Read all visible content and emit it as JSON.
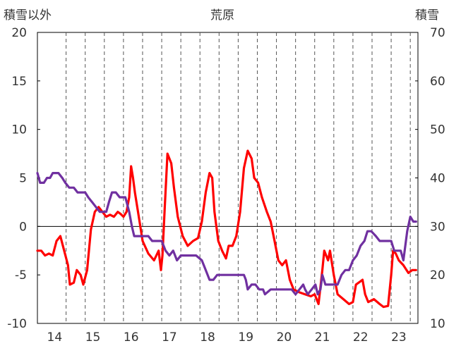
{
  "chart_data": {
    "type": "line",
    "title": "荒原",
    "left_axis_label": "積雪以外",
    "right_axis_label": "積雪",
    "left_ylim": [
      -10,
      20
    ],
    "left_ticks": [
      "20",
      "15",
      "10",
      "5",
      "0",
      "-5",
      "-10"
    ],
    "right_ylim": [
      10,
      70
    ],
    "right_ticks": [
      "70",
      "60",
      "50",
      "40",
      "30",
      "20",
      "10"
    ],
    "xlim": [
      13.55,
      23.5
    ],
    "x_tick_labels": [
      "14",
      "15",
      "16",
      "17",
      "18",
      "19",
      "20",
      "21",
      "22",
      "23"
    ],
    "x_tick_values": [
      14,
      15,
      16,
      17,
      18,
      19,
      20,
      21,
      22,
      23
    ],
    "grid": "vertical dashed lines, solid horizontal zero line",
    "series": [
      {
        "axis": "left",
        "color": "#ff0000",
        "points": [
          [
            13.55,
            -2.5
          ],
          [
            13.65,
            -2.5
          ],
          [
            13.75,
            -3.0
          ],
          [
            13.85,
            -2.8
          ],
          [
            13.95,
            -3.0
          ],
          [
            14.05,
            -1.5
          ],
          [
            14.15,
            -1.0
          ],
          [
            14.25,
            -2.5
          ],
          [
            14.35,
            -4.0
          ],
          [
            14.4,
            -6.0
          ],
          [
            14.5,
            -5.8
          ],
          [
            14.58,
            -4.5
          ],
          [
            14.68,
            -5.0
          ],
          [
            14.75,
            -6.0
          ],
          [
            14.85,
            -4.5
          ],
          [
            14.95,
            -0.3
          ],
          [
            15.05,
            1.5
          ],
          [
            15.15,
            2.0
          ],
          [
            15.25,
            1.5
          ],
          [
            15.35,
            1.0
          ],
          [
            15.45,
            1.2
          ],
          [
            15.55,
            1.0
          ],
          [
            15.65,
            1.5
          ],
          [
            15.72,
            1.3
          ],
          [
            15.8,
            1.0
          ],
          [
            15.88,
            1.5
          ],
          [
            15.95,
            3.0
          ],
          [
            16.0,
            6.2
          ],
          [
            16.05,
            5.0
          ],
          [
            16.1,
            3.5
          ],
          [
            16.2,
            1.0
          ],
          [
            16.3,
            -1.5
          ],
          [
            16.45,
            -2.8
          ],
          [
            16.6,
            -3.5
          ],
          [
            16.72,
            -2.5
          ],
          [
            16.78,
            -4.5
          ],
          [
            16.82,
            -3.0
          ],
          [
            16.88,
            2.0
          ],
          [
            16.95,
            7.5
          ],
          [
            17.05,
            6.5
          ],
          [
            17.12,
            4.0
          ],
          [
            17.22,
            1.0
          ],
          [
            17.35,
            -1.0
          ],
          [
            17.48,
            -2.0
          ],
          [
            17.62,
            -1.5
          ],
          [
            17.75,
            -1.2
          ],
          [
            17.85,
            0.5
          ],
          [
            17.95,
            3.5
          ],
          [
            18.0,
            4.5
          ],
          [
            18.05,
            5.5
          ],
          [
            18.12,
            5.0
          ],
          [
            18.18,
            1.5
          ],
          [
            18.28,
            -1.5
          ],
          [
            18.38,
            -2.5
          ],
          [
            18.48,
            -3.3
          ],
          [
            18.55,
            -2.0
          ],
          [
            18.65,
            -2.0
          ],
          [
            18.75,
            -1.0
          ],
          [
            18.85,
            1.5
          ],
          [
            18.95,
            6.0
          ],
          [
            19.05,
            7.8
          ],
          [
            19.15,
            7.0
          ],
          [
            19.22,
            5.0
          ],
          [
            19.32,
            4.5
          ],
          [
            19.42,
            3.0
          ],
          [
            19.55,
            1.5
          ],
          [
            19.65,
            0.5
          ],
          [
            19.75,
            -1.5
          ],
          [
            19.85,
            -3.5
          ],
          [
            19.95,
            -4.0
          ],
          [
            20.05,
            -3.5
          ],
          [
            20.15,
            -5.5
          ],
          [
            20.25,
            -6.5
          ],
          [
            20.4,
            -6.8
          ],
          [
            20.55,
            -7.0
          ],
          [
            20.7,
            -7.2
          ],
          [
            20.8,
            -7.0
          ],
          [
            20.9,
            -8.0
          ],
          [
            21.0,
            -4.5
          ],
          [
            21.05,
            -2.5
          ],
          [
            21.15,
            -3.5
          ],
          [
            21.2,
            -2.5
          ],
          [
            21.3,
            -5.0
          ],
          [
            21.4,
            -7.0
          ],
          [
            21.55,
            -7.5
          ],
          [
            21.7,
            -8.0
          ],
          [
            21.8,
            -7.8
          ],
          [
            21.88,
            -6.0
          ],
          [
            21.95,
            -5.8
          ],
          [
            22.05,
            -5.5
          ],
          [
            22.12,
            -7.0
          ],
          [
            22.2,
            -7.8
          ],
          [
            22.35,
            -7.5
          ],
          [
            22.5,
            -8.0
          ],
          [
            22.6,
            -8.3
          ],
          [
            22.72,
            -8.2
          ],
          [
            22.8,
            -5.0
          ],
          [
            22.85,
            -2.5
          ],
          [
            22.92,
            -2.8
          ],
          [
            23.0,
            -3.5
          ],
          [
            23.12,
            -4.0
          ],
          [
            23.25,
            -4.8
          ],
          [
            23.35,
            -4.5
          ],
          [
            23.45,
            -4.5
          ]
        ]
      },
      {
        "axis": "right",
        "color": "#7030a0",
        "points": [
          [
            13.55,
            41.0
          ],
          [
            13.62,
            39.0
          ],
          [
            13.72,
            39.0
          ],
          [
            13.8,
            40.0
          ],
          [
            13.88,
            40.0
          ],
          [
            13.95,
            41.0
          ],
          [
            14.1,
            41.0
          ],
          [
            14.2,
            40.0
          ],
          [
            14.28,
            39.0
          ],
          [
            14.38,
            38.0
          ],
          [
            14.5,
            38.0
          ],
          [
            14.6,
            37.0
          ],
          [
            14.8,
            37.0
          ],
          [
            14.88,
            36.0
          ],
          [
            14.98,
            35.0
          ],
          [
            15.08,
            34.0
          ],
          [
            15.18,
            33.0
          ],
          [
            15.28,
            33.0
          ],
          [
            15.35,
            33.0
          ],
          [
            15.42,
            35.0
          ],
          [
            15.5,
            37.0
          ],
          [
            15.6,
            37.0
          ],
          [
            15.7,
            36.0
          ],
          [
            15.85,
            36.0
          ],
          [
            15.95,
            33.0
          ],
          [
            16.02,
            30.0
          ],
          [
            16.08,
            28.0
          ],
          [
            16.25,
            28.0
          ],
          [
            16.45,
            28.0
          ],
          [
            16.55,
            27.0
          ],
          [
            16.65,
            27.0
          ],
          [
            16.8,
            27.0
          ],
          [
            16.9,
            25.0
          ],
          [
            17.0,
            24.0
          ],
          [
            17.1,
            25.0
          ],
          [
            17.2,
            23.0
          ],
          [
            17.3,
            24.0
          ],
          [
            17.5,
            24.0
          ],
          [
            17.7,
            24.0
          ],
          [
            17.85,
            23.0
          ],
          [
            17.95,
            21.0
          ],
          [
            18.05,
            19.0
          ],
          [
            18.15,
            19.0
          ],
          [
            18.25,
            20.0
          ],
          [
            18.4,
            20.0
          ],
          [
            18.6,
            20.0
          ],
          [
            18.8,
            20.0
          ],
          [
            18.95,
            20.0
          ],
          [
            19.0,
            19.0
          ],
          [
            19.05,
            17.0
          ],
          [
            19.15,
            18.0
          ],
          [
            19.25,
            18.0
          ],
          [
            19.35,
            17.0
          ],
          [
            19.45,
            17.0
          ],
          [
            19.5,
            16.0
          ],
          [
            19.65,
            17.0
          ],
          [
            19.8,
            17.0
          ],
          [
            19.95,
            17.0
          ],
          [
            20.1,
            17.0
          ],
          [
            20.2,
            17.0
          ],
          [
            20.3,
            16.0
          ],
          [
            20.4,
            17.0
          ],
          [
            20.5,
            18.0
          ],
          [
            20.55,
            17.0
          ],
          [
            20.62,
            16.0
          ],
          [
            20.72,
            17.0
          ],
          [
            20.82,
            18.0
          ],
          [
            20.88,
            16.0
          ],
          [
            20.95,
            17.0
          ],
          [
            21.0,
            20.0
          ],
          [
            21.08,
            18.0
          ],
          [
            21.18,
            18.0
          ],
          [
            21.3,
            18.0
          ],
          [
            21.4,
            18.0
          ],
          [
            21.5,
            20.0
          ],
          [
            21.6,
            21.0
          ],
          [
            21.7,
            21.0
          ],
          [
            21.8,
            23.0
          ],
          [
            21.9,
            24.0
          ],
          [
            22.0,
            26.0
          ],
          [
            22.1,
            27.0
          ],
          [
            22.18,
            29.0
          ],
          [
            22.28,
            29.0
          ],
          [
            22.4,
            28.0
          ],
          [
            22.5,
            27.0
          ],
          [
            22.65,
            27.0
          ],
          [
            22.8,
            27.0
          ],
          [
            22.88,
            25.0
          ],
          [
            22.95,
            25.0
          ],
          [
            23.05,
            25.0
          ],
          [
            23.12,
            23.0
          ],
          [
            23.22,
            29.0
          ],
          [
            23.3,
            32.0
          ],
          [
            23.38,
            31.0
          ],
          [
            23.45,
            31.0
          ]
        ]
      }
    ]
  }
}
